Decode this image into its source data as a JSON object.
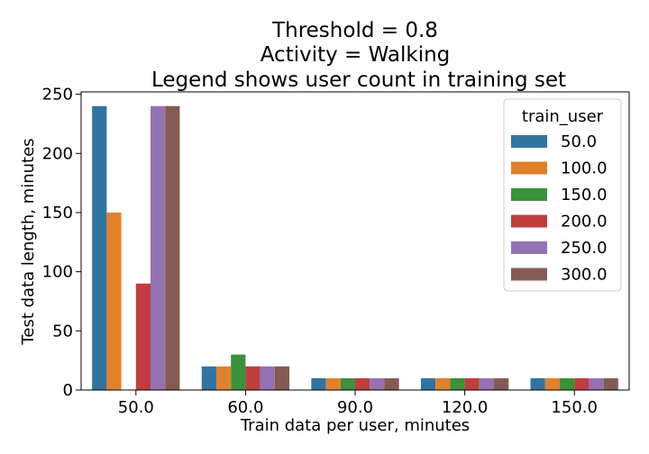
{
  "chart_data": {
    "type": "bar",
    "title_lines": [
      "Threshold = 0.8",
      "Activity = Walking",
      "Legend shows user count in training set"
    ],
    "xlabel": "Train data per user, minutes",
    "ylabel": "Test data length, minutes",
    "categories": [
      "50.0",
      "60.0",
      "90.0",
      "120.0",
      "150.0"
    ],
    "ylim": [
      0,
      252
    ],
    "yticks": [
      0,
      50,
      100,
      150,
      200,
      250
    ],
    "legend": {
      "title": "train_user",
      "position": "top-right"
    },
    "series": [
      {
        "name": "50.0",
        "color": "#3274a1",
        "values": [
          240,
          20,
          10,
          10,
          10
        ]
      },
      {
        "name": "100.0",
        "color": "#e1812c",
        "values": [
          150,
          20,
          10,
          10,
          10
        ]
      },
      {
        "name": "150.0",
        "color": "#3a923a",
        "values": [
          0,
          30,
          10,
          10,
          10
        ]
      },
      {
        "name": "200.0",
        "color": "#c03d3e",
        "values": [
          90,
          20,
          10,
          10,
          10
        ]
      },
      {
        "name": "250.0",
        "color": "#9372b2",
        "values": [
          240,
          20,
          10,
          10,
          10
        ]
      },
      {
        "name": "300.0",
        "color": "#845b53",
        "values": [
          240,
          20,
          10,
          10,
          10
        ]
      }
    ]
  }
}
